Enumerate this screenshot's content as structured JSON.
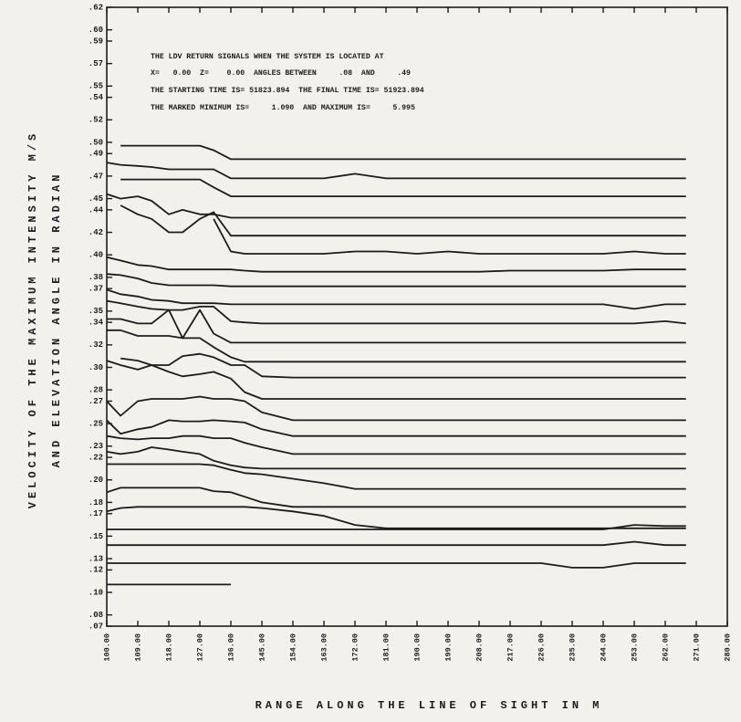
{
  "chart_data": {
    "type": "line",
    "annotations": [
      "THE LDV RETURN SIGNALS WHEN THE SYSTEM IS LOCATED AT",
      "X=   0.00  Z=    0.00  ANGLES BETWEEN     .08  AND     .49",
      "THE STARTING TIME IS= 51823.894  THE FINAL TIME IS= 51923.894",
      "THE MARKED MINIMUM IS=     1.090  AND MAXIMUM IS=     5.995"
    ],
    "ylabel": [
      "VELOCITY OF THE MAXIMUM INTENSITY M/S",
      "AND ELEVATION ANGLE IN RADIAN"
    ],
    "xlabel": "RANGE ALONG THE LINE OF SIGHT IN M",
    "xlim": [
      100,
      280
    ],
    "xticks": [
      {
        "value": 100,
        "label": "100.00"
      },
      {
        "value": 109,
        "label": "109.00"
      },
      {
        "value": 118,
        "label": "118.00"
      },
      {
        "value": 127,
        "label": "127.00"
      },
      {
        "value": 136,
        "label": "136.00"
      },
      {
        "value": 145,
        "label": "145.00"
      },
      {
        "value": 154,
        "label": "154.00"
      },
      {
        "value": 163,
        "label": "163.00"
      },
      {
        "value": 172,
        "label": "172.00"
      },
      {
        "value": 181,
        "label": "181.00"
      },
      {
        "value": 190,
        "label": "190.00"
      },
      {
        "value": 199,
        "label": "199.00"
      },
      {
        "value": 208,
        "label": "208.00"
      },
      {
        "value": 217,
        "label": "217.00"
      },
      {
        "value": 226,
        "label": "226.00"
      },
      {
        "value": 235,
        "label": "235.00"
      },
      {
        "value": 244,
        "label": "244.00"
      },
      {
        "value": 253,
        "label": "253.00"
      },
      {
        "value": 262,
        "label": "262.00"
      },
      {
        "value": 271,
        "label": "271.00"
      },
      {
        "value": 280,
        "label": "280.00"
      }
    ],
    "ylim": [
      0.07,
      0.62
    ],
    "yticks": [
      {
        "value": 0.62,
        "label": ".62"
      },
      {
        "value": 0.6,
        "label": ".60"
      },
      {
        "value": 0.59,
        "label": ".59"
      },
      {
        "value": 0.57,
        "label": ".57"
      },
      {
        "value": 0.55,
        "label": ".55"
      },
      {
        "value": 0.54,
        "label": ".54"
      },
      {
        "value": 0.52,
        "label": ".52"
      },
      {
        "value": 0.5,
        "label": ".50"
      },
      {
        "value": 0.49,
        "label": ".49"
      },
      {
        "value": 0.47,
        "label": ".47"
      },
      {
        "value": 0.45,
        "label": ".45"
      },
      {
        "value": 0.44,
        "label": ".44"
      },
      {
        "value": 0.42,
        "label": ".42"
      },
      {
        "value": 0.4,
        "label": ".40"
      },
      {
        "value": 0.38,
        "label": ".38"
      },
      {
        "value": 0.37,
        "label": ".37"
      },
      {
        "value": 0.35,
        "label": ".35"
      },
      {
        "value": 0.34,
        "label": ".34"
      },
      {
        "value": 0.32,
        "label": ".32"
      },
      {
        "value": 0.3,
        "label": ".30"
      },
      {
        "value": 0.28,
        "label": ".28"
      },
      {
        "value": 0.27,
        "label": ".27"
      },
      {
        "value": 0.25,
        "label": ".25"
      },
      {
        "value": 0.23,
        "label": ".23"
      },
      {
        "value": 0.22,
        "label": ".22"
      },
      {
        "value": 0.2,
        "label": ".20"
      },
      {
        "value": 0.18,
        "label": ".18"
      },
      {
        "value": 0.17,
        "label": ".17"
      },
      {
        "value": 0.15,
        "label": ".15"
      },
      {
        "value": 0.13,
        "label": ".13"
      },
      {
        "value": 0.12,
        "label": ".12"
      },
      {
        "value": 0.1,
        "label": ".10"
      },
      {
        "value": 0.08,
        "label": ".08"
      },
      {
        "value": 0.07,
        "label": ".07"
      }
    ],
    "x": [
      100,
      104,
      109,
      113,
      118,
      122,
      127,
      131,
      136,
      140,
      145,
      154,
      163,
      172,
      181,
      190,
      199,
      208,
      217,
      226,
      235,
      244,
      253,
      262,
      268
    ],
    "series": [
      {
        "color": "#1c1c1c",
        "values": [
          null,
          0.497,
          0.497,
          0.497,
          0.497,
          0.497,
          0.497,
          0.493,
          0.485,
          0.485,
          0.485,
          0.485,
          0.485,
          0.485,
          0.485,
          0.485,
          0.485,
          0.485,
          0.485,
          0.485,
          0.485,
          0.485,
          0.485,
          0.485,
          0.485
        ]
      },
      {
        "color": "#1c1c1c",
        "values": [
          0.482,
          0.48,
          0.479,
          0.478,
          0.476,
          0.476,
          0.476,
          0.476,
          0.468,
          0.468,
          0.468,
          0.468,
          0.468,
          0.472,
          0.468,
          0.468,
          0.468,
          0.468,
          0.468,
          0.468,
          0.468,
          0.468,
          0.468,
          0.468,
          0.468
        ]
      },
      {
        "color": "#1c1c1c",
        "values": [
          null,
          0.467,
          0.467,
          0.467,
          0.467,
          0.467,
          0.467,
          0.46,
          0.452,
          0.452,
          0.452,
          0.452,
          0.452,
          0.452,
          0.452,
          0.452,
          0.452,
          0.452,
          0.452,
          0.452,
          0.452,
          0.452,
          0.452,
          0.452,
          0.452
        ]
      },
      {
        "color": "#1c1c1c",
        "values": [
          0.454,
          0.45,
          0.452,
          0.448,
          0.436,
          0.44,
          0.436,
          0.436,
          0.433,
          0.433,
          0.433,
          0.433,
          0.433,
          0.433,
          0.433,
          0.433,
          0.433,
          0.433,
          0.433,
          0.433,
          0.433,
          0.433,
          0.433,
          0.433,
          0.433
        ]
      },
      {
        "color": "#1c1c1c",
        "values": [
          null,
          0.444,
          0.436,
          0.432,
          0.42,
          0.42,
          0.432,
          0.438,
          0.417,
          0.417,
          0.417,
          0.417,
          0.417,
          0.417,
          0.417,
          0.417,
          0.417,
          0.417,
          0.417,
          0.417,
          0.417,
          0.417,
          0.417,
          0.417,
          0.417
        ]
      },
      {
        "color": "#1c1c1c",
        "values": [
          null,
          null,
          null,
          null,
          null,
          null,
          null,
          0.432,
          0.403,
          0.401,
          0.401,
          0.401,
          0.401,
          0.403,
          0.403,
          0.401,
          0.403,
          0.401,
          0.401,
          0.401,
          0.401,
          0.401,
          0.403,
          0.401,
          0.401
        ]
      },
      {
        "color": "#1c1c1c",
        "values": [
          0.398,
          0.395,
          0.391,
          0.39,
          0.387,
          0.387,
          0.387,
          0.387,
          0.387,
          0.386,
          0.385,
          0.385,
          0.385,
          0.385,
          0.385,
          0.385,
          0.385,
          0.385,
          0.386,
          0.386,
          0.386,
          0.386,
          0.387,
          0.387,
          0.387
        ]
      },
      {
        "color": "#1c1c1c",
        "values": [
          0.383,
          0.382,
          0.379,
          0.375,
          0.373,
          0.373,
          0.373,
          0.373,
          0.372,
          0.372,
          0.372,
          0.372,
          0.372,
          0.372,
          0.372,
          0.372,
          0.372,
          0.372,
          0.372,
          0.372,
          0.372,
          0.372,
          0.372,
          0.372,
          0.372
        ]
      },
      {
        "color": "#1c1c1c",
        "values": [
          0.369,
          0.365,
          0.363,
          0.36,
          0.359,
          0.357,
          0.357,
          0.357,
          0.356,
          0.356,
          0.356,
          0.356,
          0.356,
          0.356,
          0.356,
          0.356,
          0.356,
          0.356,
          0.356,
          0.356,
          0.356,
          0.356,
          0.352,
          0.356,
          0.356
        ]
      },
      {
        "color": "#1c1c1c",
        "values": [
          0.359,
          0.357,
          0.354,
          0.352,
          0.351,
          0.351,
          0.354,
          0.354,
          0.341,
          0.34,
          0.339,
          0.339,
          0.339,
          0.339,
          0.339,
          0.339,
          0.339,
          0.339,
          0.339,
          0.339,
          0.339,
          0.339,
          0.339,
          0.341,
          0.339
        ]
      },
      {
        "color": "#1c1c1c",
        "values": [
          0.343,
          0.343,
          0.339,
          0.339,
          0.351,
          0.326,
          0.351,
          0.33,
          0.322,
          0.322,
          0.322,
          0.322,
          0.322,
          0.322,
          0.322,
          0.322,
          0.322,
          0.322,
          0.322,
          0.322,
          0.322,
          0.322,
          0.322,
          0.322,
          0.322
        ]
      },
      {
        "color": "#1c1c1c",
        "values": [
          0.333,
          0.333,
          0.328,
          0.328,
          0.328,
          0.326,
          0.326,
          0.318,
          0.309,
          0.305,
          0.305,
          0.305,
          0.305,
          0.305,
          0.305,
          0.305,
          0.305,
          0.305,
          0.305,
          0.305,
          0.305,
          0.305,
          0.305,
          0.305,
          0.305
        ]
      },
      {
        "color": "#1c1c1c",
        "values": [
          null,
          0.308,
          0.306,
          0.302,
          0.302,
          0.31,
          0.312,
          0.309,
          0.302,
          0.302,
          0.292,
          0.291,
          0.291,
          0.291,
          0.291,
          0.291,
          0.291,
          0.291,
          0.291,
          0.291,
          0.291,
          0.291,
          0.291,
          0.291,
          0.291
        ]
      },
      {
        "color": "#1c1c1c",
        "values": [
          0.306,
          0.302,
          0.298,
          0.302,
          0.296,
          0.292,
          0.294,
          0.296,
          0.29,
          0.278,
          0.272,
          0.272,
          0.272,
          0.272,
          0.272,
          0.272,
          0.272,
          0.272,
          0.272,
          0.272,
          0.272,
          0.272,
          0.272,
          0.272,
          0.272
        ]
      },
      {
        "color": "#1c1c1c",
        "values": [
          0.27,
          0.257,
          0.27,
          0.272,
          0.272,
          0.272,
          0.274,
          0.272,
          0.272,
          0.27,
          0.26,
          0.253,
          0.253,
          0.253,
          0.253,
          0.253,
          0.253,
          0.253,
          0.253,
          0.253,
          0.253,
          0.253,
          0.253,
          0.253,
          0.253
        ]
      },
      {
        "color": "#1c1c1c",
        "values": [
          0.253,
          0.241,
          0.245,
          0.247,
          0.253,
          0.252,
          0.252,
          0.253,
          0.252,
          0.251,
          0.245,
          0.239,
          0.239,
          0.239,
          0.239,
          0.239,
          0.239,
          0.239,
          0.239,
          0.239,
          0.239,
          0.239,
          0.239,
          0.239,
          0.239
        ]
      },
      {
        "color": "#1c1c1c",
        "values": [
          0.239,
          0.237,
          0.236,
          0.237,
          0.237,
          0.239,
          0.239,
          0.237,
          0.237,
          0.233,
          0.229,
          0.223,
          0.223,
          0.223,
          0.223,
          0.223,
          0.223,
          0.223,
          0.223,
          0.223,
          0.223,
          0.223,
          0.223,
          0.223,
          0.223
        ]
      },
      {
        "color": "#1c1c1c",
        "values": [
          0.225,
          0.223,
          0.225,
          0.229,
          0.227,
          0.225,
          0.223,
          0.217,
          0.213,
          0.211,
          0.21,
          0.21,
          0.21,
          0.21,
          0.21,
          0.21,
          0.21,
          0.21,
          0.21,
          0.21,
          0.21,
          0.21,
          0.21,
          0.21,
          0.21
        ]
      },
      {
        "color": "#1c1c1c",
        "values": [
          0.214,
          0.214,
          0.214,
          0.214,
          0.214,
          0.214,
          0.214,
          0.213,
          0.209,
          0.206,
          0.205,
          0.201,
          0.197,
          0.192,
          0.192,
          0.192,
          0.192,
          0.192,
          0.192,
          0.192,
          0.192,
          0.192,
          0.192,
          0.192,
          0.192
        ]
      },
      {
        "color": "#1c1c1c",
        "values": [
          0.189,
          0.193,
          0.193,
          0.193,
          0.193,
          0.193,
          0.193,
          0.19,
          0.189,
          0.185,
          0.18,
          0.176,
          0.176,
          0.176,
          0.176,
          0.176,
          0.176,
          0.176,
          0.176,
          0.176,
          0.176,
          0.176,
          0.176,
          0.176,
          0.176
        ]
      },
      {
        "color": "#1c1c1c",
        "values": [
          0.172,
          0.175,
          0.176,
          0.176,
          0.176,
          0.176,
          0.176,
          0.176,
          0.176,
          0.176,
          0.175,
          0.172,
          0.168,
          0.16,
          0.157,
          0.157,
          0.157,
          0.157,
          0.157,
          0.157,
          0.157,
          0.157,
          0.157,
          0.157,
          0.157
        ]
      },
      {
        "color": "#1c1c1c",
        "values": [
          0.156,
          0.156,
          0.156,
          0.156,
          0.156,
          0.156,
          0.156,
          0.156,
          0.156,
          0.156,
          0.156,
          0.156,
          0.156,
          0.156,
          0.156,
          0.156,
          0.156,
          0.156,
          0.156,
          0.156,
          0.156,
          0.156,
          0.16,
          0.159,
          0.159
        ]
      },
      {
        "color": "#1c1c1c",
        "values": [
          0.142,
          0.142,
          0.142,
          0.142,
          0.142,
          0.142,
          0.142,
          0.142,
          0.142,
          0.142,
          0.142,
          0.142,
          0.142,
          0.142,
          0.142,
          0.142,
          0.142,
          0.142,
          0.142,
          0.142,
          0.142,
          0.142,
          0.145,
          0.142,
          0.142
        ]
      },
      {
        "color": "#1c1c1c",
        "values": [
          0.126,
          0.126,
          0.126,
          0.126,
          0.126,
          0.126,
          0.126,
          0.126,
          0.126,
          0.126,
          0.126,
          0.126,
          0.126,
          0.126,
          0.126,
          0.126,
          0.126,
          0.126,
          0.126,
          0.126,
          0.122,
          0.122,
          0.126,
          0.126,
          0.126
        ]
      },
      {
        "color": "#1c1c1c",
        "values": [
          0.107,
          0.107,
          0.107,
          0.107,
          0.107,
          0.107,
          0.107,
          0.107,
          0.107,
          null,
          null,
          null,
          null,
          null,
          null,
          null,
          null,
          null,
          null,
          null,
          null,
          null,
          null,
          null,
          null
        ]
      }
    ]
  }
}
